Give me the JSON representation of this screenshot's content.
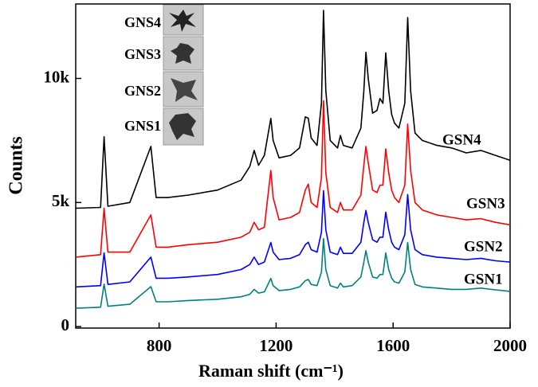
{
  "chart_data": {
    "type": "line",
    "xlabel": "Raman shift (cm⁻¹)",
    "ylabel": "Counts",
    "xlim": [
      515,
      2000
    ],
    "ylim": [
      -60,
      13000
    ],
    "xticks": [
      800,
      1200,
      1600,
      2000
    ],
    "yticks": [
      0,
      {
        "value": 5000,
        "label": "5k"
      },
      {
        "value": 10000,
        "label": "10k"
      }
    ],
    "inset_labels": [
      "GNS4",
      "GNS3",
      "GNS2",
      "GNS1"
    ],
    "x": [
      515,
      600,
      612,
      625,
      700,
      772,
      790,
      830,
      900,
      1000,
      1080,
      1110,
      1125,
      1140,
      1160,
      1182,
      1190,
      1210,
      1250,
      1280,
      1300,
      1310,
      1320,
      1340,
      1355,
      1362,
      1370,
      1385,
      1410,
      1420,
      1430,
      1460,
      1490,
      1500,
      1507,
      1515,
      1530,
      1545,
      1555,
      1565,
      1575,
      1585,
      1595,
      1605,
      1620,
      1640,
      1650,
      1660,
      1675,
      1700,
      1750,
      1800,
      1850,
      1900,
      1950,
      2000
    ],
    "series": [
      {
        "name": "GSN4",
        "color": "#000000",
        "values": [
          4770,
          4800,
          7650,
          4850,
          5000,
          7260,
          5200,
          5200,
          5300,
          5500,
          5900,
          6450,
          7100,
          6500,
          6900,
          8390,
          7500,
          6800,
          6900,
          7200,
          8450,
          8400,
          7600,
          7300,
          9000,
          12740,
          9500,
          7500,
          7200,
          7700,
          7300,
          7200,
          8000,
          9500,
          11060,
          10000,
          8600,
          8710,
          9190,
          9000,
          11030,
          9500,
          8550,
          8200,
          8000,
          9000,
          12450,
          9500,
          7800,
          7500,
          7300,
          7200,
          7000,
          7100,
          6900,
          6700
        ]
      },
      {
        "name": "GSN3",
        "color": "#ff0000",
        "values": [
          2800,
          2900,
          4770,
          3000,
          3000,
          4500,
          3200,
          3200,
          3300,
          3400,
          3600,
          3800,
          4200,
          3900,
          4000,
          6290,
          5200,
          4300,
          4400,
          4600,
          5500,
          5740,
          5000,
          4800,
          6000,
          9100,
          6200,
          4800,
          4600,
          5000,
          4700,
          4700,
          5300,
          6500,
          7260,
          6600,
          5500,
          5400,
          5700,
          5700,
          7160,
          6200,
          5500,
          5200,
          5000,
          5700,
          8160,
          6300,
          5000,
          4700,
          4500,
          4400,
          4300,
          4350,
          4200,
          4100
        ]
      },
      {
        "name": "GSN2",
        "color": "#0000ff",
        "values": [
          1600,
          1650,
          2970,
          1700,
          1800,
          2800,
          1950,
          1950,
          2000,
          2100,
          2300,
          2500,
          2800,
          2500,
          2600,
          3390,
          3000,
          2700,
          2750,
          2900,
          3300,
          3400,
          3100,
          3000,
          3800,
          5480,
          3900,
          3000,
          2900,
          3200,
          2950,
          2950,
          3400,
          4200,
          4680,
          4200,
          3500,
          3400,
          3600,
          3600,
          4610,
          3900,
          3400,
          3200,
          3100,
          3700,
          5320,
          3900,
          3100,
          2900,
          2800,
          2750,
          2700,
          2750,
          2650,
          2600
        ]
      },
      {
        "name": "GSN1",
        "color": "#008080",
        "values": [
          740,
          780,
          1710,
          820,
          900,
          1610,
          1000,
          1000,
          1050,
          1100,
          1200,
          1300,
          1500,
          1350,
          1400,
          1940,
          1650,
          1450,
          1500,
          1600,
          1850,
          1900,
          1700,
          1650,
          2200,
          3550,
          2300,
          1650,
          1550,
          1750,
          1600,
          1650,
          2000,
          2600,
          3060,
          2600,
          2000,
          1950,
          2100,
          2100,
          2970,
          2300,
          1950,
          1800,
          1750,
          2200,
          3390,
          2300,
          1700,
          1600,
          1550,
          1500,
          1500,
          1550,
          1480,
          1420
        ]
      }
    ]
  }
}
